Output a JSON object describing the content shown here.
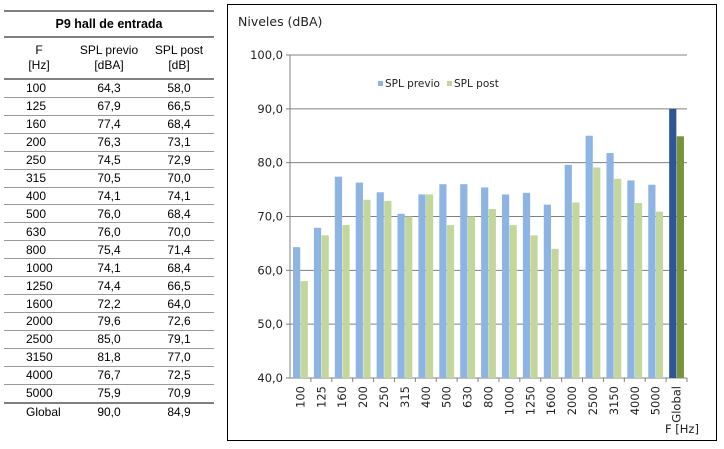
{
  "table": {
    "title": "P9 hall de entrada",
    "headers": [
      {
        "line1": "F",
        "line2": "[Hz]"
      },
      {
        "line1": "SPL previo",
        "line2": "[dBA]"
      },
      {
        "line1": "SPL post",
        "line2": "[dB]"
      }
    ],
    "rows": [
      [
        "100",
        "64,3",
        "58,0"
      ],
      [
        "125",
        "67,9",
        "66,5"
      ],
      [
        "160",
        "77,4",
        "68,4"
      ],
      [
        "200",
        "76,3",
        "73,1"
      ],
      [
        "250",
        "74,5",
        "72,9"
      ],
      [
        "315",
        "70,5",
        "70,0"
      ],
      [
        "400",
        "74,1",
        "74,1"
      ],
      [
        "500",
        "76,0",
        "68,4"
      ],
      [
        "630",
        "76,0",
        "70,0"
      ],
      [
        "800",
        "75,4",
        "71,4"
      ],
      [
        "1000",
        "74,1",
        "68,4"
      ],
      [
        "1250",
        "74,4",
        "66,5"
      ],
      [
        "1600",
        "72,2",
        "64,0"
      ],
      [
        "2000",
        "79,6",
        "72,6"
      ],
      [
        "2500",
        "85,0",
        "79,1"
      ],
      [
        "3150",
        "81,8",
        "77,0"
      ],
      [
        "4000",
        "76,7",
        "72,5"
      ],
      [
        "5000",
        "75,9",
        "70,9"
      ]
    ],
    "global_row": [
      "Global",
      "90,0",
      "84,9"
    ]
  },
  "chart_data": {
    "type": "bar",
    "ylabel": "Niveles (dBA)",
    "xlabel": "F [Hz]",
    "ylim": [
      40,
      100
    ],
    "ytick_labels": [
      "40,0",
      "50,0",
      "60,0",
      "70,0",
      "80,0",
      "90,0",
      "100,0"
    ],
    "grid": true,
    "legend_position": "top-center",
    "categories": [
      "100",
      "125",
      "160",
      "200",
      "250",
      "315",
      "400",
      "500",
      "630",
      "800",
      "1000",
      "1250",
      "1600",
      "2000",
      "2500",
      "3150",
      "4000",
      "5000",
      "Global"
    ],
    "series": [
      {
        "name": "SPL previo",
        "color": "#8eb4e3",
        "highlight_color": "#2f5597",
        "values": [
          64.3,
          67.9,
          77.4,
          76.3,
          74.5,
          70.5,
          74.1,
          76.0,
          76.0,
          75.4,
          74.1,
          74.4,
          72.2,
          79.6,
          85.0,
          81.8,
          76.7,
          75.9,
          90.0
        ]
      },
      {
        "name": "SPL post",
        "color": "#c3d69b",
        "highlight_color": "#77933c",
        "values": [
          58.0,
          66.5,
          68.4,
          73.1,
          72.9,
          70.0,
          74.1,
          68.4,
          70.0,
          71.4,
          68.4,
          66.5,
          64.0,
          72.6,
          79.1,
          77.0,
          72.5,
          70.9,
          84.9
        ]
      }
    ]
  }
}
